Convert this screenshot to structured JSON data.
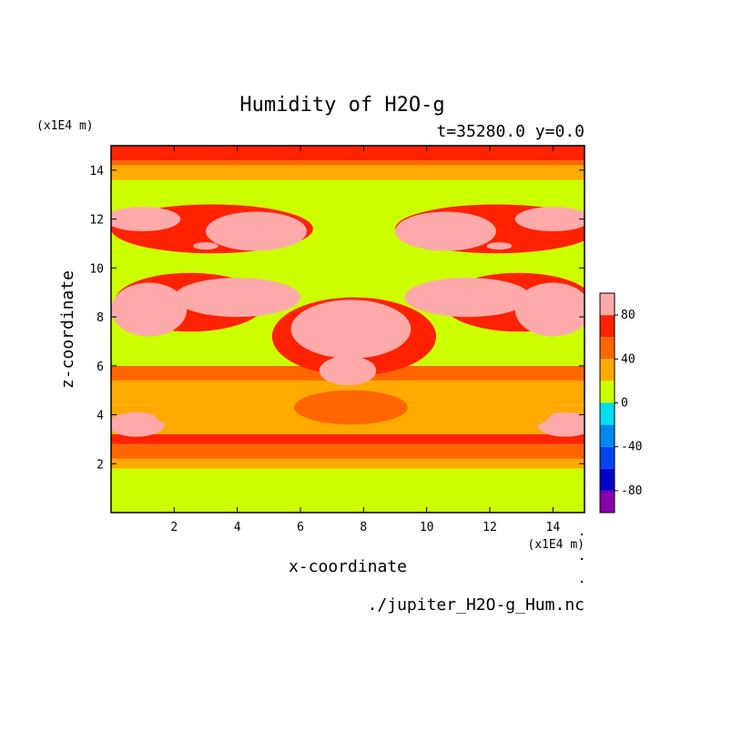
{
  "chart_data": {
    "type": "heatmap",
    "title": "Humidity of H2O-g",
    "subtitle": "t=35280.0 y=0.0",
    "source_file": "./jupiter_H2O-g_Hum.nc",
    "xlabel": "x-coordinate",
    "ylabel": "z-coordinate",
    "x_unit": "(x1E4 m)",
    "y_unit": "(x1E4 m)",
    "xlim": [
      0,
      15
    ],
    "ylim": [
      0,
      15
    ],
    "x_ticks": [
      "2",
      "4",
      "6",
      "8",
      "10",
      "12",
      "14"
    ],
    "y_ticks": [
      "2",
      "4",
      "6",
      "8",
      "10",
      "12",
      "14"
    ],
    "colorbar": {
      "levels": [
        -100,
        -80,
        -60,
        -40,
        -20,
        0,
        20,
        40,
        60,
        80,
        100
      ],
      "colors": [
        "#8800aa",
        "#0000cc",
        "#0044ee",
        "#0088ee",
        "#00ddee",
        "#ccff00",
        "#ffaa00",
        "#ff6600",
        "#ff2200",
        "#ffaaaa"
      ],
      "tick_labels": [
        "80",
        "40",
        "0",
        "-40",
        "-80"
      ]
    },
    "bands": [
      {
        "z": [
          0,
          1.8
        ],
        "value": 10
      },
      {
        "z": [
          1.8,
          2.2
        ],
        "value": 30
      },
      {
        "z": [
          2.2,
          2.8
        ],
        "value": 50
      },
      {
        "z": [
          2.8,
          3.2
        ],
        "value": 70
      },
      {
        "z": [
          3.2,
          4.4
        ],
        "value": 30
      },
      {
        "z": [
          4.4,
          5.4
        ],
        "value": 30
      },
      {
        "z": [
          5.4,
          6.0
        ],
        "value": 50
      },
      {
        "z": [
          6.0,
          13.6
        ],
        "value": 10
      },
      {
        "z": [
          13.6,
          14.2
        ],
        "value": 30
      },
      {
        "z": [
          14.2,
          14.4
        ],
        "value": 50
      },
      {
        "z": [
          14.4,
          15.0
        ],
        "value": 70
      }
    ],
    "blobs": [
      {
        "cx": 7.7,
        "cz": 7.2,
        "rx": 2.6,
        "rz": 1.6,
        "value": 70
      },
      {
        "cx": 7.6,
        "cz": 7.5,
        "rx": 1.9,
        "rz": 1.2,
        "value": 90
      },
      {
        "cx": 7.5,
        "cz": 5.8,
        "rx": 0.9,
        "rz": 0.6,
        "value": 100
      },
      {
        "cx": 7.6,
        "cz": 4.2,
        "rx": 0.7,
        "rz": 0.5,
        "value": 70
      },
      {
        "cx": 2.5,
        "cz": 8.6,
        "rx": 2.4,
        "rz": 1.2,
        "value": 70
      },
      {
        "cx": 1.2,
        "cz": 8.3,
        "rx": 1.2,
        "rz": 1.1,
        "value": 90
      },
      {
        "cx": 4.0,
        "cz": 8.8,
        "rx": 2.0,
        "rz": 0.8,
        "value": 90
      },
      {
        "cx": 12.9,
        "cz": 8.6,
        "rx": 2.4,
        "rz": 1.2,
        "value": 70
      },
      {
        "cx": 14.0,
        "cz": 8.3,
        "rx": 1.2,
        "rz": 1.1,
        "value": 90
      },
      {
        "cx": 11.3,
        "cz": 8.8,
        "rx": 2.0,
        "rz": 0.8,
        "value": 90
      },
      {
        "cx": 3.2,
        "cz": 11.6,
        "rx": 3.2,
        "rz": 1.0,
        "value": 70
      },
      {
        "cx": 1.0,
        "cz": 12.0,
        "rx": 1.2,
        "rz": 0.5,
        "value": 90
      },
      {
        "cx": 4.6,
        "cz": 11.5,
        "rx": 1.6,
        "rz": 0.8,
        "value": 90
      },
      {
        "cx": 3.0,
        "cz": 10.9,
        "rx": 0.4,
        "rz": 0.15,
        "value": 100
      },
      {
        "cx": 12.2,
        "cz": 11.6,
        "rx": 3.2,
        "rz": 1.0,
        "value": 70
      },
      {
        "cx": 14.0,
        "cz": 12.0,
        "rx": 1.2,
        "rz": 0.5,
        "value": 90
      },
      {
        "cx": 10.6,
        "cz": 11.5,
        "rx": 1.6,
        "rz": 0.8,
        "value": 90
      },
      {
        "cx": 12.3,
        "cz": 10.9,
        "rx": 0.4,
        "rz": 0.15,
        "value": 100
      },
      {
        "cx": 0.8,
        "cz": 3.6,
        "rx": 0.9,
        "rz": 0.5,
        "value": 90
      },
      {
        "cx": 14.4,
        "cz": 3.6,
        "rx": 0.9,
        "rz": 0.5,
        "value": 90
      },
      {
        "cx": 3.5,
        "cz": 4.2,
        "rx": 2.2,
        "rz": 1.0,
        "value": 30
      },
      {
        "cx": 11.8,
        "cz": 4.2,
        "rx": 2.2,
        "rz": 1.0,
        "value": 30
      },
      {
        "cx": 7.6,
        "cz": 4.3,
        "rx": 1.8,
        "rz": 0.7,
        "value": 50
      }
    ]
  }
}
